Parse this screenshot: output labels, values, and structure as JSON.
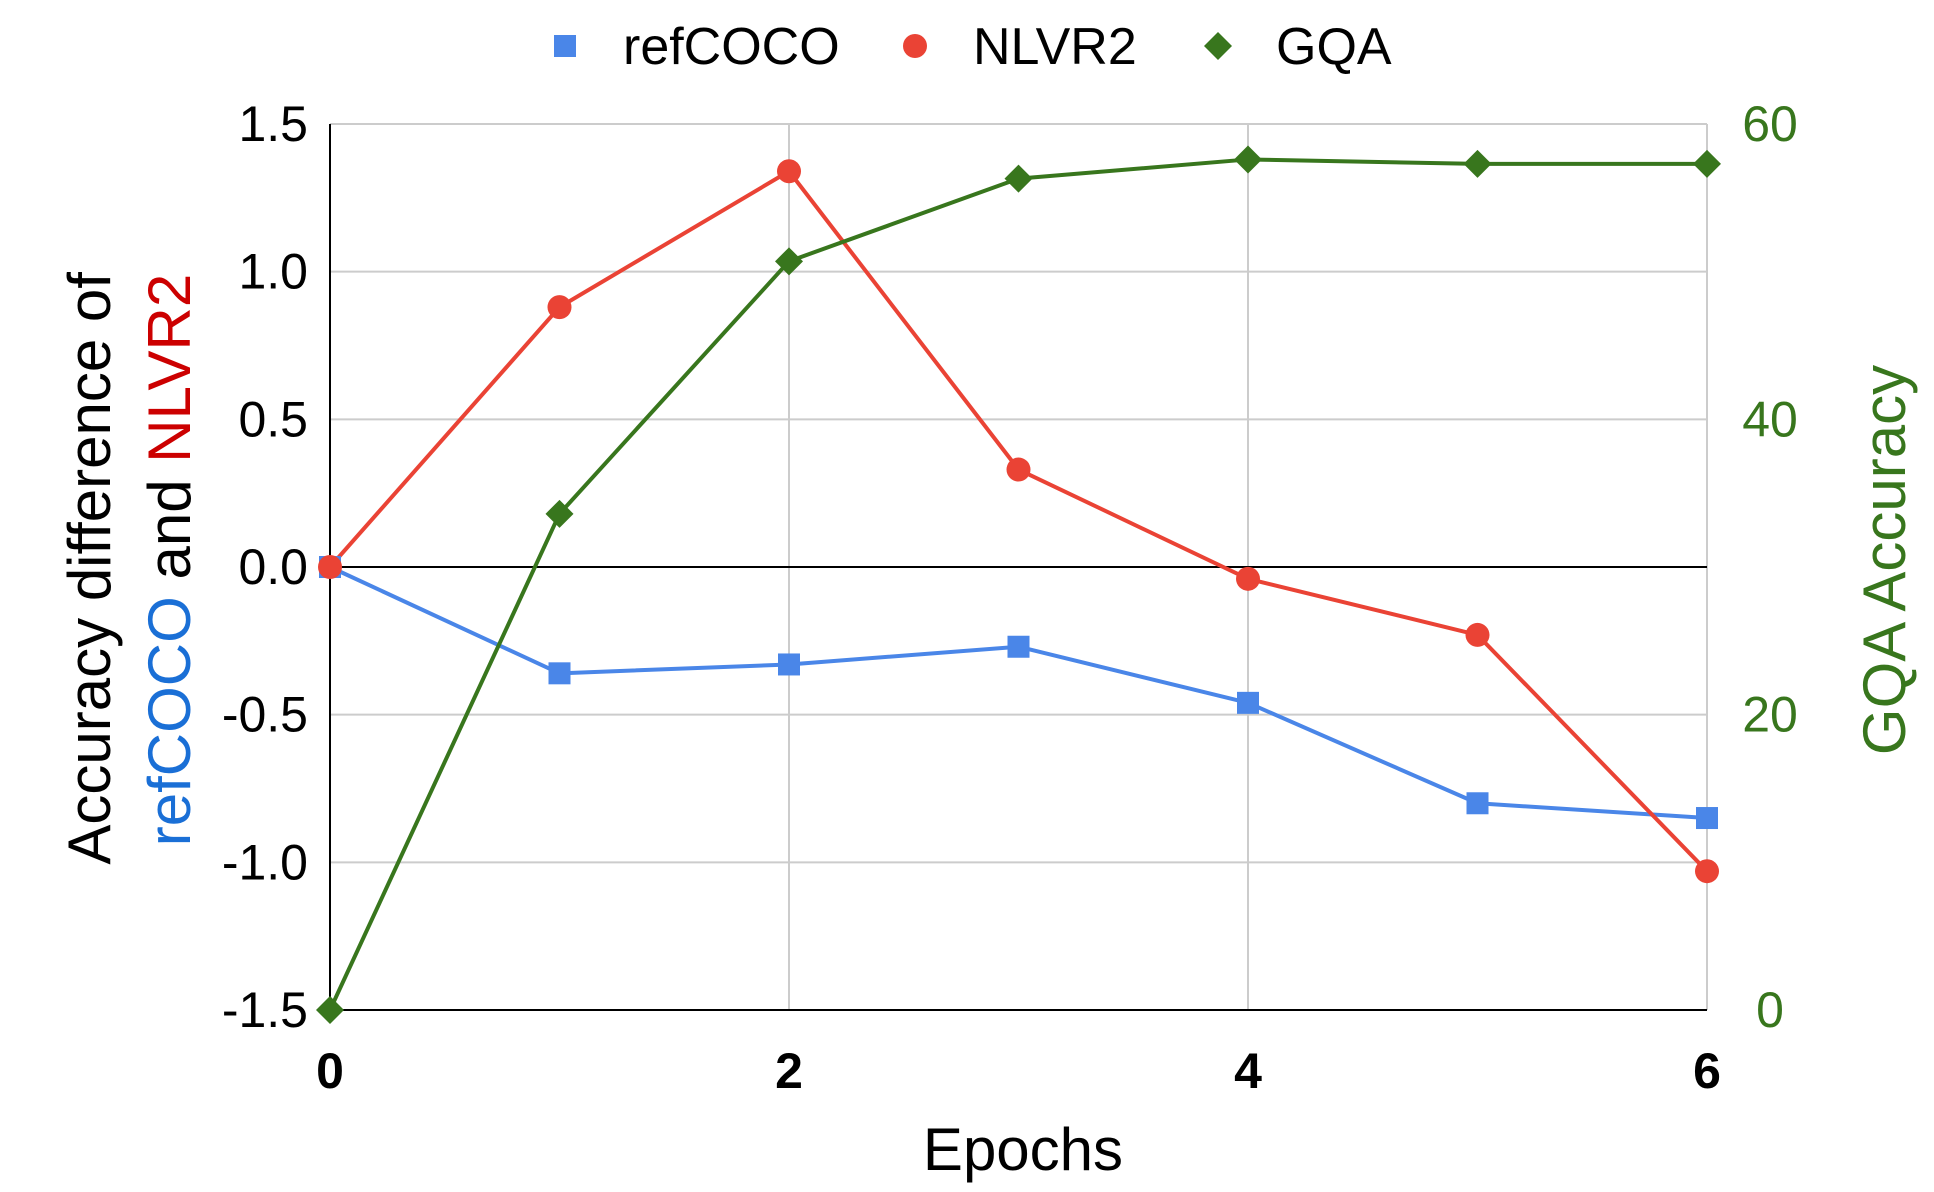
{
  "chart_data": {
    "type": "line",
    "x": [
      0,
      1,
      2,
      3,
      4,
      5,
      6
    ],
    "xlabel": "Epochs",
    "x_ticks": [
      "0",
      "2",
      "4",
      "6"
    ],
    "xlim": [
      0,
      6
    ],
    "ylabel": {
      "prefix": "Accuracy difference of",
      "part1": "refCOCO",
      "connector": " and ",
      "part2": "NLVR2"
    },
    "ylim": [
      -1.5,
      1.5
    ],
    "y_ticks": [
      "1.5",
      "1.0",
      "0.5",
      "0.0",
      "-0.5",
      "-1.0",
      "-1.5"
    ],
    "y2label": "GQA Accuracy",
    "y2lim": [
      0,
      60
    ],
    "y2_ticks": [
      "60",
      "40",
      "20",
      "0"
    ],
    "grid": true,
    "legend_position": "top",
    "series": [
      {
        "name": "refCOCO",
        "axis": "left",
        "marker": "square",
        "color": "#4a86e8",
        "values": [
          0.0,
          -0.36,
          -0.33,
          -0.27,
          -0.46,
          -0.8,
          -0.85
        ]
      },
      {
        "name": "NLVR2",
        "axis": "left",
        "marker": "circle",
        "color": "#ea4335",
        "values": [
          0.0,
          0.88,
          1.34,
          0.33,
          -0.04,
          -0.23,
          -1.03
        ]
      },
      {
        "name": "GQA",
        "axis": "right",
        "marker": "diamond",
        "color": "#38761d",
        "values": [
          0.0,
          33.6,
          50.7,
          56.3,
          57.6,
          57.3,
          57.3
        ]
      }
    ],
    "colors": {
      "refCOCO_label": "#1a6fd6",
      "NLVR2_label": "#cc0000",
      "y2_axis": "#38761d"
    }
  }
}
